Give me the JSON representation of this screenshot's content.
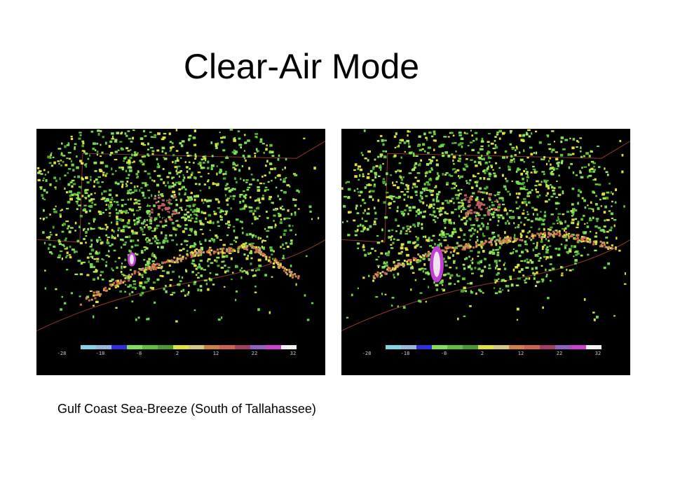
{
  "slide": {
    "title": "Clear-Air Mode",
    "caption": "Gulf Coast Sea-Breeze  (South of Tallahassee)",
    "images": [
      {
        "colorbar_labels": [
          "-28",
          "-18",
          "-8",
          "2",
          "12",
          "22",
          "32"
        ]
      },
      {
        "colorbar_labels": [
          "-28",
          "-18",
          "-8",
          "2",
          "12",
          "22",
          "32"
        ]
      }
    ]
  }
}
